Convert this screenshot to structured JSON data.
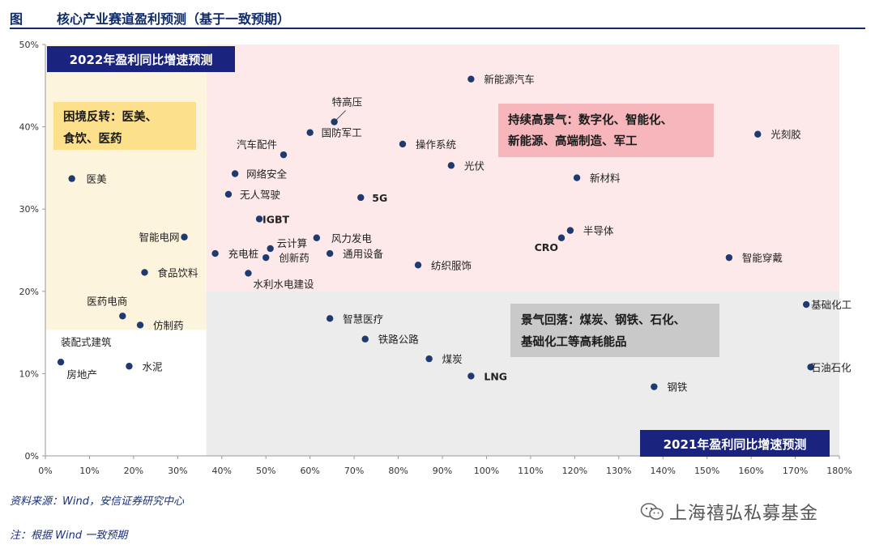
{
  "figure": {
    "title_prefix": "图",
    "title": "核心产业赛道盈利预测（基于一致预期）"
  },
  "chart_data": {
    "type": "scatter",
    "title": "核心产业赛道盈利预测（基于一致预期）",
    "xlabel": "2021年盈利同比增速预测",
    "ylabel": "2022年盈利同比增速预测",
    "xlim": [
      0,
      180
    ],
    "ylim": [
      0,
      50
    ],
    "x_ticks": [
      "0%",
      "10%",
      "20%",
      "30%",
      "40%",
      "50%",
      "60%",
      "70%",
      "80%",
      "90%",
      "100%",
      "110%",
      "120%",
      "130%",
      "140%",
      "150%",
      "160%",
      "170%",
      "180%"
    ],
    "y_ticks": [
      "0%",
      "10%",
      "20%",
      "30%",
      "40%",
      "50%"
    ],
    "grid": false,
    "points": [
      {
        "name": "新能源汽车",
        "x": 96.5,
        "y": 45.8
      },
      {
        "name": "特高压",
        "x": 65.5,
        "y": 40.6
      },
      {
        "name": "国防军工",
        "x": 60,
        "y": 39.3
      },
      {
        "name": "操作系统",
        "x": 81,
        "y": 37.9
      },
      {
        "name": "汽车配件",
        "x": 54,
        "y": 36.6
      },
      {
        "name": "光伏",
        "x": 92,
        "y": 35.3
      },
      {
        "name": "网络安全",
        "x": 43,
        "y": 34.3
      },
      {
        "name": "医美",
        "x": 6,
        "y": 33.7
      },
      {
        "name": "新材料",
        "x": 120.5,
        "y": 33.8
      },
      {
        "name": "光刻胶",
        "x": 161.5,
        "y": 39.1
      },
      {
        "name": "无人驾驶",
        "x": 41.5,
        "y": 31.8
      },
      {
        "name": "5G",
        "x": 71.5,
        "y": 31.4
      },
      {
        "name": "IGBT",
        "x": 48.5,
        "y": 28.8
      },
      {
        "name": "半导体",
        "x": 119,
        "y": 27.4
      },
      {
        "name": "CRO",
        "x": 117,
        "y": 26.5
      },
      {
        "name": "智能电网",
        "x": 31.5,
        "y": 26.6
      },
      {
        "name": "云计算",
        "x": 51,
        "y": 25.2
      },
      {
        "name": "风力发电",
        "x": 61.5,
        "y": 26.5
      },
      {
        "name": "充电桩",
        "x": 38.5,
        "y": 24.6
      },
      {
        "name": "创新药",
        "x": 50,
        "y": 24.1
      },
      {
        "name": "通用设备",
        "x": 64.5,
        "y": 24.6
      },
      {
        "name": "纺织服饰",
        "x": 84.5,
        "y": 23.2
      },
      {
        "name": "智能穿戴",
        "x": 155,
        "y": 24.1
      },
      {
        "name": "食品饮料",
        "x": 22.5,
        "y": 22.3
      },
      {
        "name": "水利水电建设",
        "x": 46,
        "y": 22.2
      },
      {
        "name": "医药电商",
        "x": 17.5,
        "y": 17.0
      },
      {
        "name": "仿制药",
        "x": 21.5,
        "y": 15.9
      },
      {
        "name": "智慧医疗",
        "x": 64.5,
        "y": 16.7
      },
      {
        "name": "铁路公路",
        "x": 72.5,
        "y": 14.2
      },
      {
        "name": "煤炭",
        "x": 87,
        "y": 11.8
      },
      {
        "name": "LNG",
        "x": 96.5,
        "y": 9.7
      },
      {
        "name": "钢铁",
        "x": 138,
        "y": 8.4
      },
      {
        "name": "基础化工",
        "x": 172.5,
        "y": 18.4
      },
      {
        "name": "石油石化",
        "x": 173.5,
        "y": 10.8
      },
      {
        "name": "装配式建筑",
        "x": 3.5,
        "y": 11.4
      },
      {
        "name": "房地产",
        "x": 3,
        "y": 11.4
      },
      {
        "name": "水泥",
        "x": 19,
        "y": 10.9
      }
    ],
    "regions": [
      {
        "name": "困境反转",
        "text_lines": [
          "困境反转：医美、",
          "食饮、医药"
        ]
      },
      {
        "name": "持续高景气",
        "text_lines": [
          "持续高景气：数字化、智能化、",
          "新能源、高端制造、军工"
        ]
      },
      {
        "name": "景气回落",
        "text_lines": [
          "景气回落：煤炭、钢铁、石化、",
          "基础化工等高耗能品"
        ]
      }
    ]
  },
  "footer": {
    "source": "资料来源：Wind，安信证券研究中心",
    "note": "注：根据 Wind 一致预期"
  },
  "watermark": {
    "text": "上海禧弘私募基金"
  },
  "colors": {
    "point": "#1f3a6e",
    "badge": "#1a237e",
    "pink_region": "#fde9ea",
    "yellow_region": "#fdf4dd",
    "gray_region": "#ececec",
    "box_yellow": "#fde08c",
    "box_pink": "#f6b6bb",
    "box_gray": "#c9c9c9"
  }
}
